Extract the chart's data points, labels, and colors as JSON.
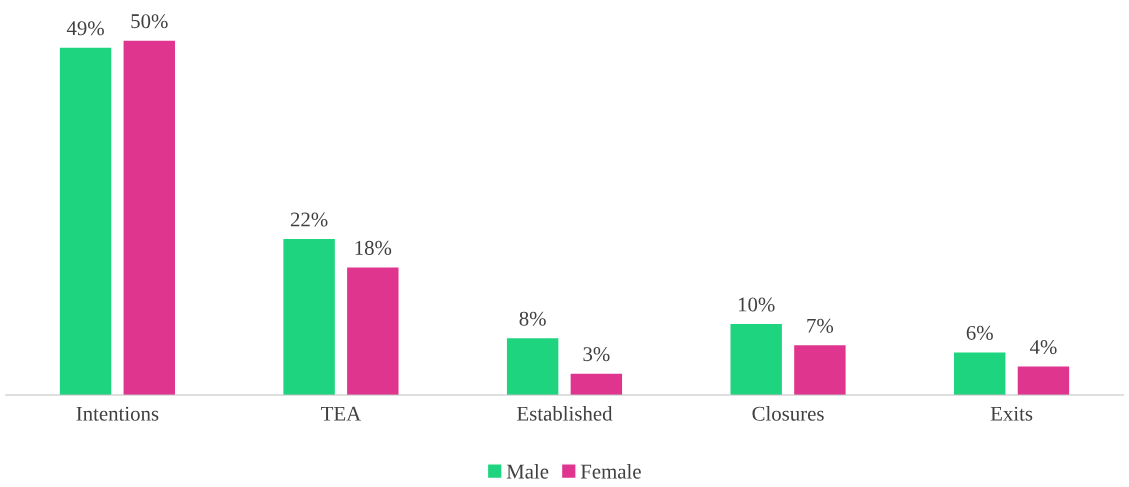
{
  "chart_data": {
    "type": "bar",
    "categories": [
      "Intentions",
      "TEA",
      "Established",
      "Closures",
      "Exits"
    ],
    "series": [
      {
        "name": "Male",
        "color": "#1ed47f",
        "values": [
          49,
          22,
          8,
          10,
          6
        ],
        "value_labels": [
          "49%",
          "22%",
          "8%",
          "10%",
          "6%"
        ]
      },
      {
        "name": "Female",
        "color": "#e0358f",
        "values": [
          50,
          18,
          3,
          7,
          4
        ],
        "value_labels": [
          "50%",
          "18%",
          "3%",
          "7%",
          "4%"
        ]
      }
    ],
    "legend": "bottom",
    "grid": false
  }
}
